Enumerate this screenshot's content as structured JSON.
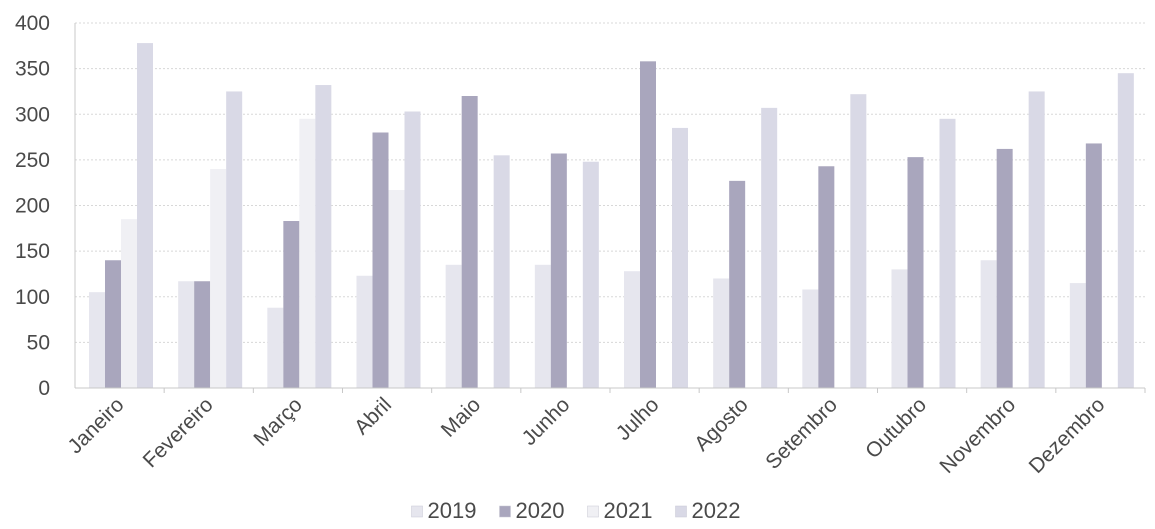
{
  "chart_data": {
    "type": "bar",
    "title": "",
    "xlabel": "",
    "ylabel": "",
    "ylim": [
      0,
      400
    ],
    "yticks": [
      0,
      50,
      100,
      150,
      200,
      250,
      300,
      350,
      400
    ],
    "grid": true,
    "legend": "bottom",
    "categories": [
      "Janeiro",
      "Fevereiro",
      "Março",
      "Abril",
      "Maio",
      "Junho",
      "Julho",
      "Agosto",
      "Setembro",
      "Outubro",
      "Novembro",
      "Dezembro"
    ],
    "series": [
      {
        "name": "2019",
        "color": "#e6e6ee",
        "values": [
          105,
          117,
          88,
          123,
          135,
          135,
          128,
          120,
          108,
          130,
          140,
          115
        ]
      },
      {
        "name": "2020",
        "color": "#a9a6bd",
        "values": [
          140,
          117,
          183,
          280,
          320,
          257,
          358,
          227,
          243,
          253,
          262,
          268
        ]
      },
      {
        "name": "2021",
        "color": "#f0f0f4",
        "values": [
          185,
          240,
          295,
          217,
          0,
          0,
          0,
          0,
          0,
          0,
          0,
          0
        ]
      },
      {
        "name": "2022",
        "color": "#d9d9e6",
        "values": [
          378,
          325,
          332,
          303,
          255,
          248,
          285,
          307,
          322,
          295,
          325,
          345
        ]
      }
    ]
  }
}
